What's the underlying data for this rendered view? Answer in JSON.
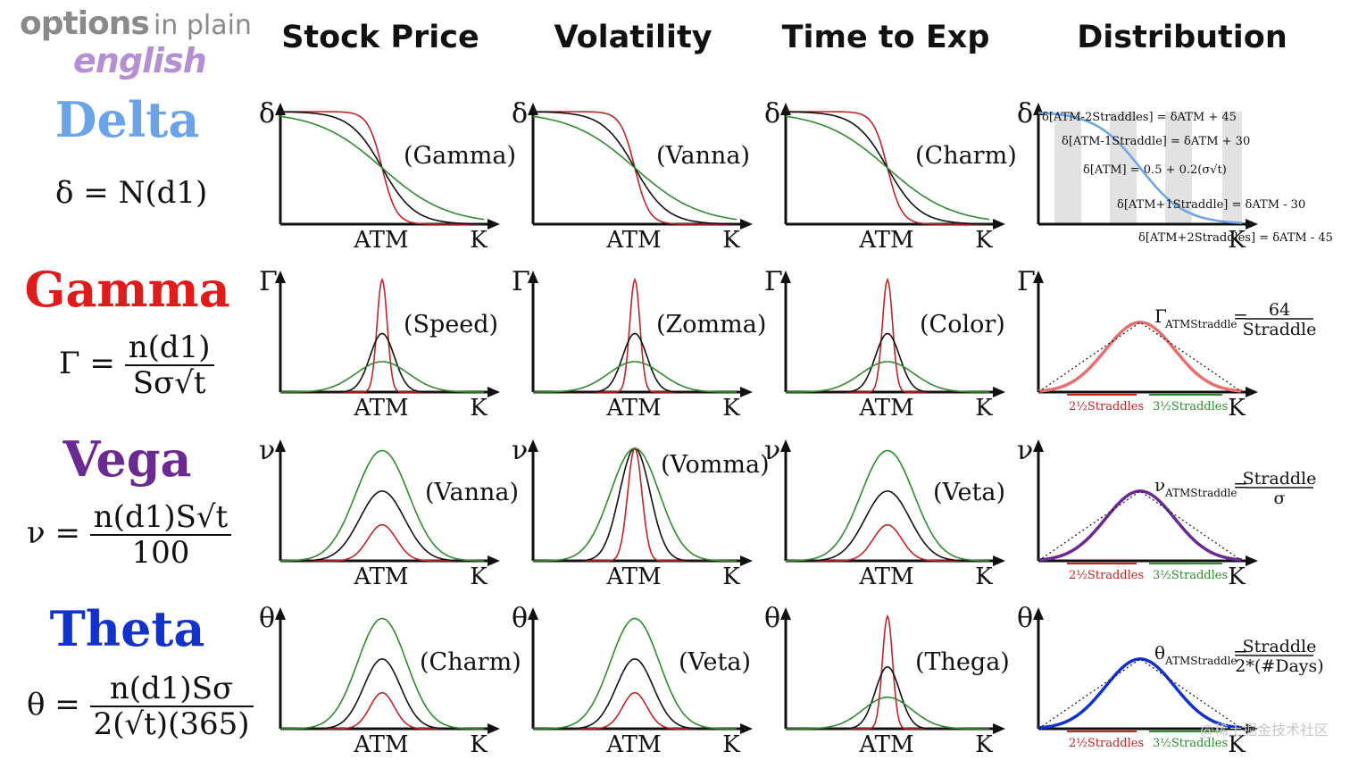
{
  "logo": {
    "line1a": "options",
    "line1b": "in plain",
    "line2": "english"
  },
  "columns": [
    {
      "label": "Stock Price"
    },
    {
      "label": "Volatility"
    },
    {
      "label": "Time to Exp"
    },
    {
      "label": "Distribution"
    }
  ],
  "rows": [
    {
      "name": "Delta",
      "color": "#6aa3e8",
      "symbol": "δ",
      "formula": {
        "lhs": "δ = N(d1)"
      },
      "panels": [
        "(Gamma)",
        "(Vanna)",
        "(Charm)"
      ]
    },
    {
      "name": "Gamma",
      "color": "#e01b1b",
      "symbol": "Γ",
      "formula": {
        "lhs": "Γ =",
        "num": "n(d1)",
        "den": "Sσ√t"
      },
      "panels": [
        "(Speed)",
        "(Zomma)",
        "(Color)"
      ]
    },
    {
      "name": "Vega",
      "color": "#6b2a91",
      "symbol": "ν",
      "formula": {
        "lhs": "ν =",
        "num": "n(d1)S√t",
        "den": "100"
      },
      "panels": [
        "(Vanna)",
        "(Vomma)",
        "(Veta)"
      ]
    },
    {
      "name": "Theta",
      "color": "#1133cc",
      "symbol": "θ",
      "formula": {
        "lhs": "θ =",
        "num": "n(d1)Sσ",
        "den": "2(√t)(365)"
      },
      "panels": [
        "(Charm)",
        "(Veta)",
        "(Thega)"
      ]
    }
  ],
  "axis": {
    "atm": "ATM",
    "k": "K"
  },
  "distribution": {
    "delta_labels": [
      "δ[ATM-2Straddles] = δATM + 45",
      "δ[ATM-1Straddle] = δATM + 30",
      "δ[ATM] = 0.5 + 0.2(σ√t)",
      "δ[ATM+1Straddle] = δATM - 30",
      "δ[ATM+2Straddles] = δATM - 45"
    ],
    "gamma": {
      "lhs": "Γ",
      "sub": "ATMStraddle",
      "num": "64",
      "den": "Straddle"
    },
    "vega": {
      "lhs": "ν",
      "sub": "ATMStraddle",
      "num": "Straddle",
      "den": "σ"
    },
    "theta": {
      "lhs": "θ",
      "sub": "ATMStraddle",
      "num": "Straddle",
      "den": "2*(#Days)"
    },
    "range_left": "2½Straddles",
    "range_right": "3½Straddles",
    "colors": {
      "delta": "#6aa3e8",
      "gamma": "#e86f6f",
      "vega": "#6b2a91",
      "theta": "#1133cc",
      "red": "#c02424",
      "green": "#2e8b2e",
      "black": "#111111"
    }
  },
  "watermark": "@稀土掘金技术社区"
}
